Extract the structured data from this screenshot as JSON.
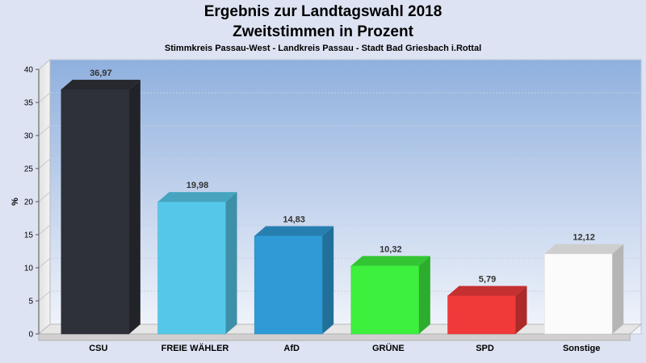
{
  "chart_data": {
    "type": "bar",
    "title": "Ergebnis zur Landtagswahl 2018",
    "subtitle": "Zweitstimmen in Prozent",
    "subtitle2": "Stimmkreis Passau-West - Landkreis Passau - Stadt Bad Griesbach i.Rottal",
    "ylabel": "%",
    "xlabel": "",
    "ylim": [
      0,
      40
    ],
    "yticks": [
      0,
      5,
      10,
      15,
      20,
      25,
      30,
      35,
      40
    ],
    "categories": [
      "CSU",
      "FREIE WÄHLER",
      "AfD",
      "GRÜNE",
      "SPD",
      "Sonstige"
    ],
    "values": [
      36.97,
      19.98,
      14.83,
      10.32,
      5.79,
      12.12
    ],
    "value_labels": [
      "36,97",
      "19,98",
      "14,83",
      "10,32",
      "5,79",
      "12,12"
    ],
    "colors": [
      "#2e3138",
      "#55c8ea",
      "#2e9bd6",
      "#3ef03e",
      "#f03a3a",
      "#fbfbfb"
    ],
    "grid": true
  }
}
